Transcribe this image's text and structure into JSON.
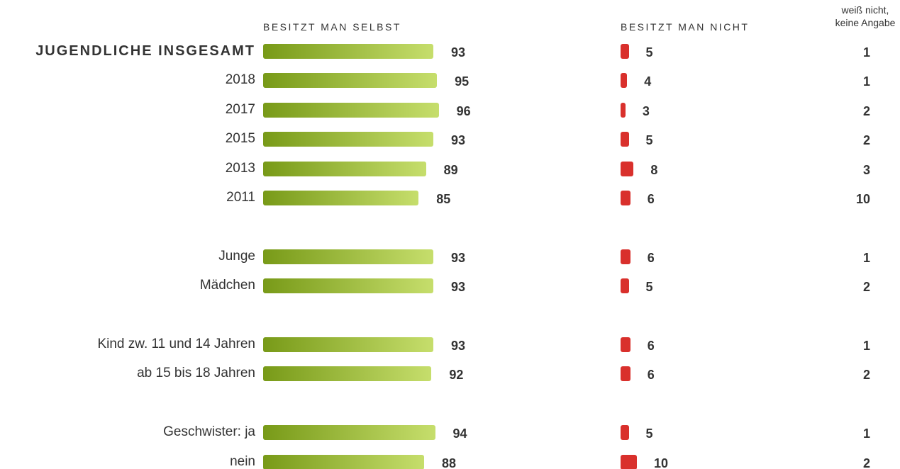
{
  "chart_data": {
    "type": "bar",
    "orientation": "horizontal",
    "categories": [
      "JUGENDLICHE INSGESAMT",
      "2018",
      "2017",
      "2015",
      "2013",
      "2011",
      "Junge",
      "Mädchen",
      "Kind zw. 11 und 14 Jahren",
      "ab 15 bis 18 Jahren",
      "Geschwister: ja",
      "nein"
    ],
    "series": [
      {
        "name": "BESITZT MAN SELBST",
        "color": [
          "#789a18",
          "#c6de6c"
        ],
        "values": [
          93,
          95,
          96,
          93,
          89,
          85,
          93,
          93,
          93,
          92,
          94,
          88
        ]
      },
      {
        "name": "BESITZT MAN NICHT",
        "color": "#d9302c",
        "values": [
          5,
          4,
          3,
          5,
          8,
          6,
          6,
          5,
          6,
          6,
          5,
          10
        ]
      },
      {
        "name": "weiß nicht, keine Angabe",
        "values": [
          1,
          1,
          2,
          2,
          3,
          10,
          1,
          2,
          1,
          2,
          1,
          2
        ]
      }
    ]
  }
}
